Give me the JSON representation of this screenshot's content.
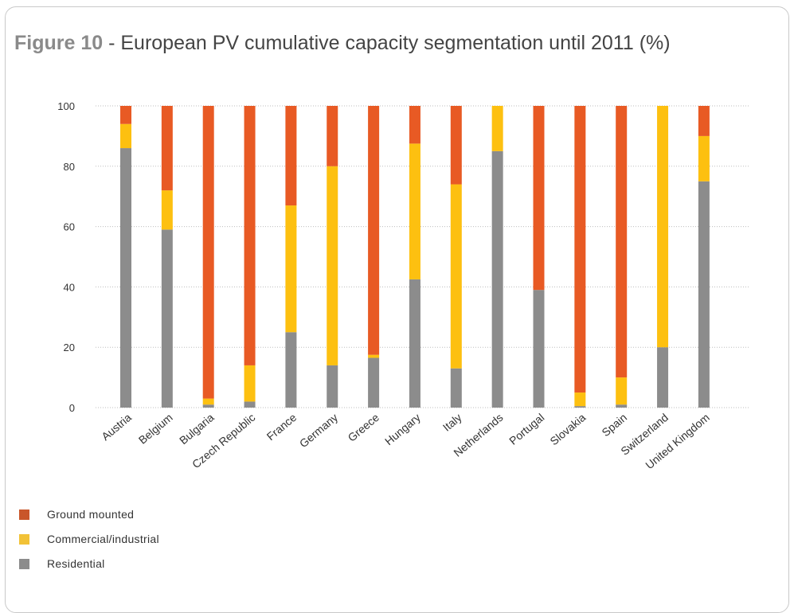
{
  "title": {
    "figure": "Figure 10",
    "separator": " - ",
    "text": "European PV cumulative capacity segmentation until 2011 (%)"
  },
  "chart_data": {
    "type": "bar",
    "stacked": true,
    "title": "Figure 10 - European PV cumulative capacity segmentation until 2011 (%)",
    "xlabel": "",
    "ylabel": "",
    "ylim": [
      0,
      100
    ],
    "yticks": [
      0,
      20,
      40,
      60,
      80,
      100
    ],
    "grid": true,
    "legend_position": "bottom-left",
    "categories": [
      "Austria",
      "Belgium",
      "Bulgaria",
      "Czech Republic",
      "France",
      "Germany",
      "Greece",
      "Hungary",
      "Italy",
      "Netherlands",
      "Portugal",
      "Slovakia",
      "Spain",
      "Switzerland",
      "United Kingdom"
    ],
    "series": [
      {
        "name": "Residential",
        "color": "#8c8c8c",
        "values": [
          86,
          59,
          1,
          2,
          25,
          14,
          16.5,
          42.5,
          13,
          85,
          39,
          0.5,
          1,
          20,
          75
        ]
      },
      {
        "name": "Commercial/industrial",
        "color": "#fdc010",
        "values": [
          8,
          13,
          2,
          12,
          42,
          66,
          1,
          45,
          61,
          15,
          0,
          4.5,
          9,
          80,
          15
        ]
      },
      {
        "name": "Ground mounted",
        "color": "#e85a24",
        "values": [
          6,
          28,
          97,
          86,
          33,
          20,
          82.5,
          12.5,
          26,
          0,
          61,
          95,
          90,
          0,
          10
        ]
      }
    ],
    "legend_order": [
      "Ground mounted",
      "Commercial/industrial",
      "Residential"
    ]
  },
  "legend": {
    "items": [
      {
        "label": "Ground mounted",
        "color": "#c9562a"
      },
      {
        "label": "Commercial/industrial",
        "color": "#f2c237"
      },
      {
        "label": "Residential",
        "color": "#8c8c8c"
      }
    ]
  }
}
